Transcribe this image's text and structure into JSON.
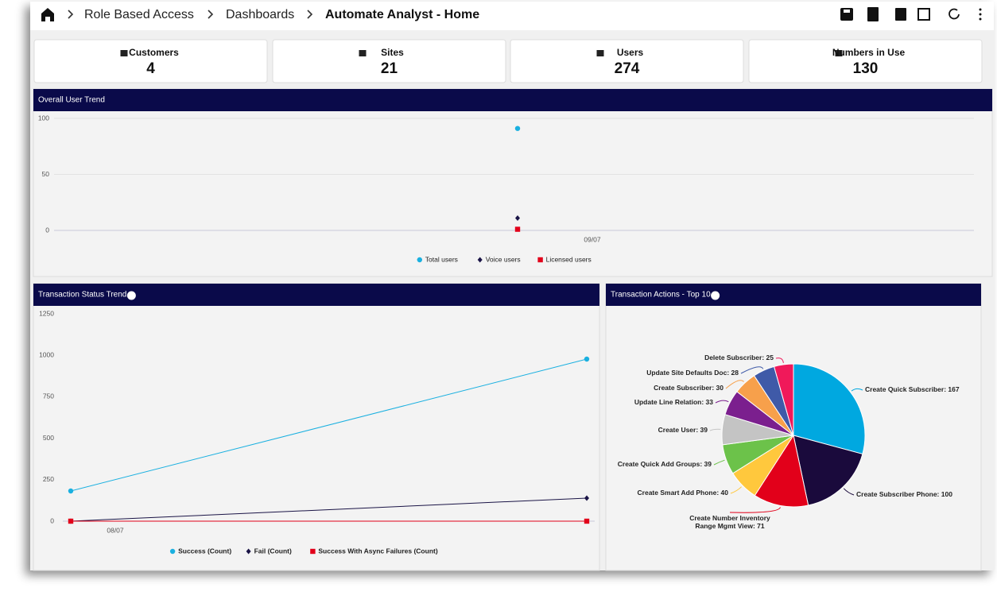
{
  "breadcrumb": [
    "Role Based Access",
    "Dashboards",
    "Automate Analyst - Home"
  ],
  "cards": [
    {
      "label": "Customers",
      "value": 4
    },
    {
      "label": "Sites",
      "value": 21
    },
    {
      "label": "Users",
      "value": 274
    },
    {
      "label": "Numbers in Use",
      "value": 130
    }
  ],
  "chart_data": [
    {
      "type": "line",
      "title": "Overall User Trend",
      "x": [
        "09/07"
      ],
      "series": [
        {
          "name": "Total users",
          "color": "#1ab0e0",
          "values": [
            91
          ]
        },
        {
          "name": "Voice users",
          "color": "#1a1446",
          "values": [
            11
          ]
        },
        {
          "name": "Licensed users",
          "color": "#e2001a",
          "values": [
            1
          ]
        }
      ],
      "ylim": [
        0,
        100
      ],
      "yticks": [
        0,
        50,
        100
      ],
      "grid": true
    },
    {
      "type": "line",
      "title": "Transaction Status Trend",
      "x": [
        "08/07",
        null
      ],
      "series": [
        {
          "name": "Success (Count)",
          "color": "#1ab0e0",
          "values": [
            182,
            977
          ]
        },
        {
          "name": "Fail (Count)",
          "color": "#1a1446",
          "values": [
            0,
            139
          ]
        },
        {
          "name": "Success With Async Failures (Count)",
          "color": "#e2001a",
          "values": [
            0,
            0
          ]
        }
      ],
      "ylim": [
        0,
        1250
      ],
      "yticks": [
        0,
        250,
        500,
        750,
        1000,
        1250
      ],
      "grid": false
    },
    {
      "type": "pie",
      "title": "Transaction Actions - Top 10",
      "values": [
        167,
        100,
        71,
        40,
        39,
        39,
        33,
        30,
        28,
        25
      ],
      "value_labels": [
        "Create Quick Subscriber: 167",
        "Create Subscriber Phone: 100",
        "Create Number Inventory Range Mgmt View: 71",
        "Create Smart Add Phone: 40",
        "Create Quick Add Groups: 39",
        "Create User: 39",
        "Update Line Relation: 33",
        "Create Subscriber: 30",
        "Update Site Defaults Doc: 28",
        "Delete Subscriber: 25"
      ],
      "colors": [
        "#00a8e0",
        "#1a0a3c",
        "#e2001a",
        "#ffc83d",
        "#6cc24a",
        "#c4c4c4",
        "#7b1f8e",
        "#f7a04b",
        "#3f5aa8",
        "#f0195a"
      ]
    }
  ]
}
